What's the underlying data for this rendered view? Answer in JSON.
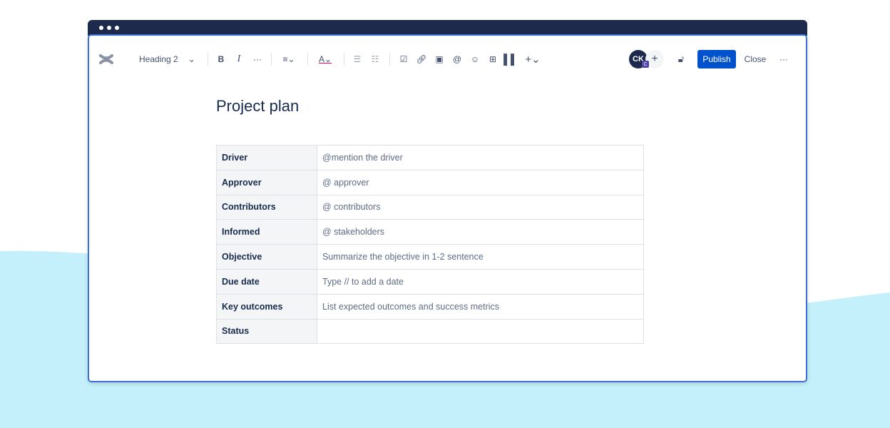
{
  "colors": {
    "titlebar": "#1d2a4b",
    "accent": "#0052cc",
    "background_wave": "#c4f0fb"
  },
  "toolbar": {
    "logo": "confluence-logo",
    "text_style": "Heading 2",
    "icons": [
      "bold",
      "italic",
      "more-formatting",
      "align",
      "text-color",
      "bullet-list",
      "numbered-list",
      "action-item",
      "link",
      "image",
      "mention",
      "emoji",
      "table",
      "layouts",
      "insert"
    ],
    "avatar_initials": "CK",
    "avatar_badge": "C",
    "publish_label": "Publish",
    "close_label": "Close"
  },
  "page": {
    "title": "Project plan",
    "rows": [
      {
        "label": "Driver",
        "value": "@mention the driver"
      },
      {
        "label": "Approver",
        "value": "@ approver"
      },
      {
        "label": "Contributors",
        "value": "@ contributors"
      },
      {
        "label": "Informed",
        "value": "@ stakeholders"
      },
      {
        "label": "Objective",
        "value": "Summarize the objective in 1-2 sentence"
      },
      {
        "label": "Due date",
        "value": "Type // to add a date"
      },
      {
        "label": "Key outcomes",
        "value": "List expected outcomes and success metrics"
      },
      {
        "label": "Status",
        "value": ""
      }
    ]
  }
}
